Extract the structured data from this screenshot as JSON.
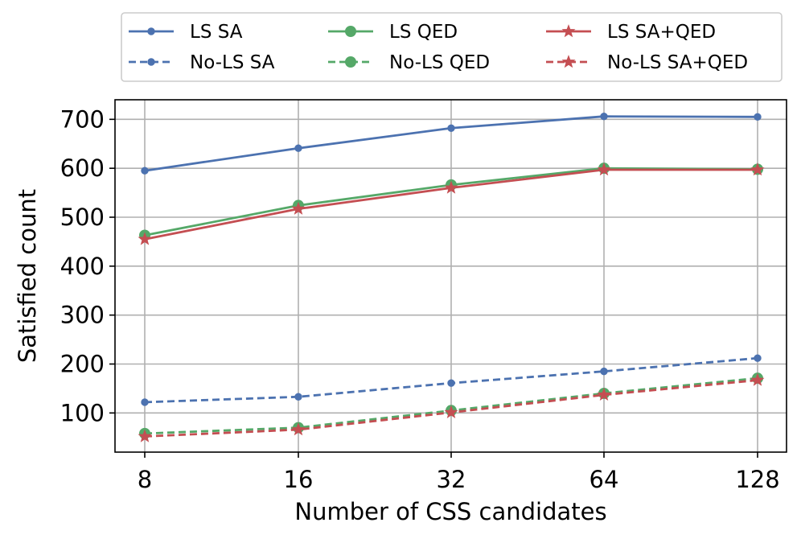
{
  "chart_data": {
    "type": "line",
    "title": "",
    "xlabel": "Number of CSS candidates",
    "ylabel": "Satisfied count",
    "x_scale": "log2",
    "categories": [
      "8",
      "16",
      "32",
      "64",
      "128"
    ],
    "x": [
      8,
      16,
      32,
      64,
      128
    ],
    "yticks": [
      "100",
      "200",
      "300",
      "400",
      "500",
      "600",
      "700"
    ],
    "ylim": [
      20,
      740
    ],
    "grid": true,
    "legend_position": "top-center, outside plot",
    "series": [
      {
        "name": "LS SA",
        "color": "#4c72b0",
        "linestyle": "solid",
        "marker": "dot",
        "values": [
          595,
          641,
          682,
          706,
          705
        ]
      },
      {
        "name": "No-LS SA",
        "color": "#4c72b0",
        "linestyle": "dashed",
        "marker": "dot",
        "values": [
          122,
          133,
          161,
          185,
          212
        ]
      },
      {
        "name": "LS QED",
        "color": "#55a868",
        "linestyle": "solid",
        "marker": "circle",
        "values": [
          463,
          524,
          566,
          600,
          598
        ]
      },
      {
        "name": "No-LS QED",
        "color": "#55a868",
        "linestyle": "dashed",
        "marker": "circle",
        "values": [
          58,
          70,
          105,
          140,
          171
        ]
      },
      {
        "name": "LS SA+QED",
        "color": "#c44e52",
        "linestyle": "solid",
        "marker": "star",
        "values": [
          455,
          517,
          560,
          597,
          597
        ]
      },
      {
        "name": "No-LS SA+QED",
        "color": "#c44e52",
        "linestyle": "dashed",
        "marker": "star",
        "values": [
          52,
          66,
          101,
          137,
          167
        ]
      }
    ]
  }
}
